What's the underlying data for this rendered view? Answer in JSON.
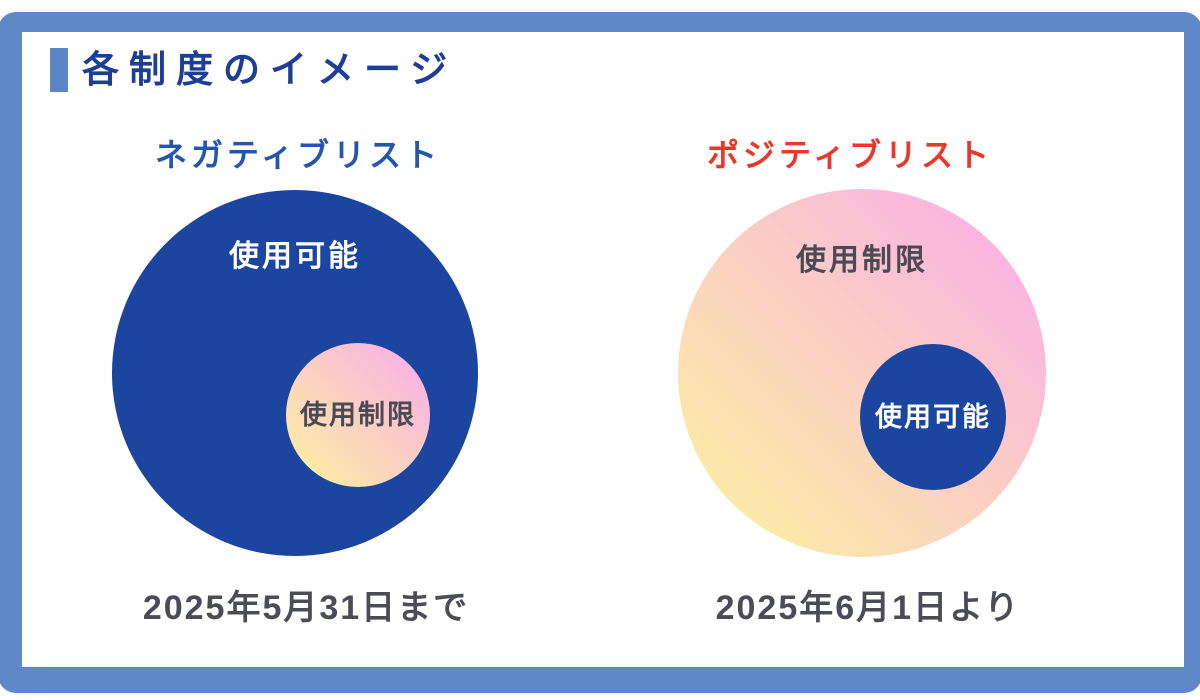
{
  "title": "各制度のイメージ",
  "panels": [
    {
      "id": "negative-list",
      "heading": "ネガティブリスト",
      "outer_circle_label": "使用可能",
      "inner_circle_label": "使用制限",
      "caption": "2025年5月31日まで"
    },
    {
      "id": "positive-list",
      "heading": "ポジティブリスト",
      "outer_circle_label": "使用制限",
      "inner_circle_label": "使用可能",
      "caption": "2025年6月1日より"
    }
  ],
  "colors": {
    "frame_blue": "#5E88C7",
    "accent_blue": "#5C85C6",
    "title_navy": "#1D3E97",
    "heading_blue": "#2456AB",
    "heading_red": "#E8382B",
    "circle_navy": "#1B459E",
    "gradient_yellow": "#FCF0A2",
    "gradient_peach": "#FBCEC4",
    "gradient_pink": "#FAAEE9",
    "caption_gray": "#4C4C55",
    "inner_label_gray": "#4A4A54"
  }
}
